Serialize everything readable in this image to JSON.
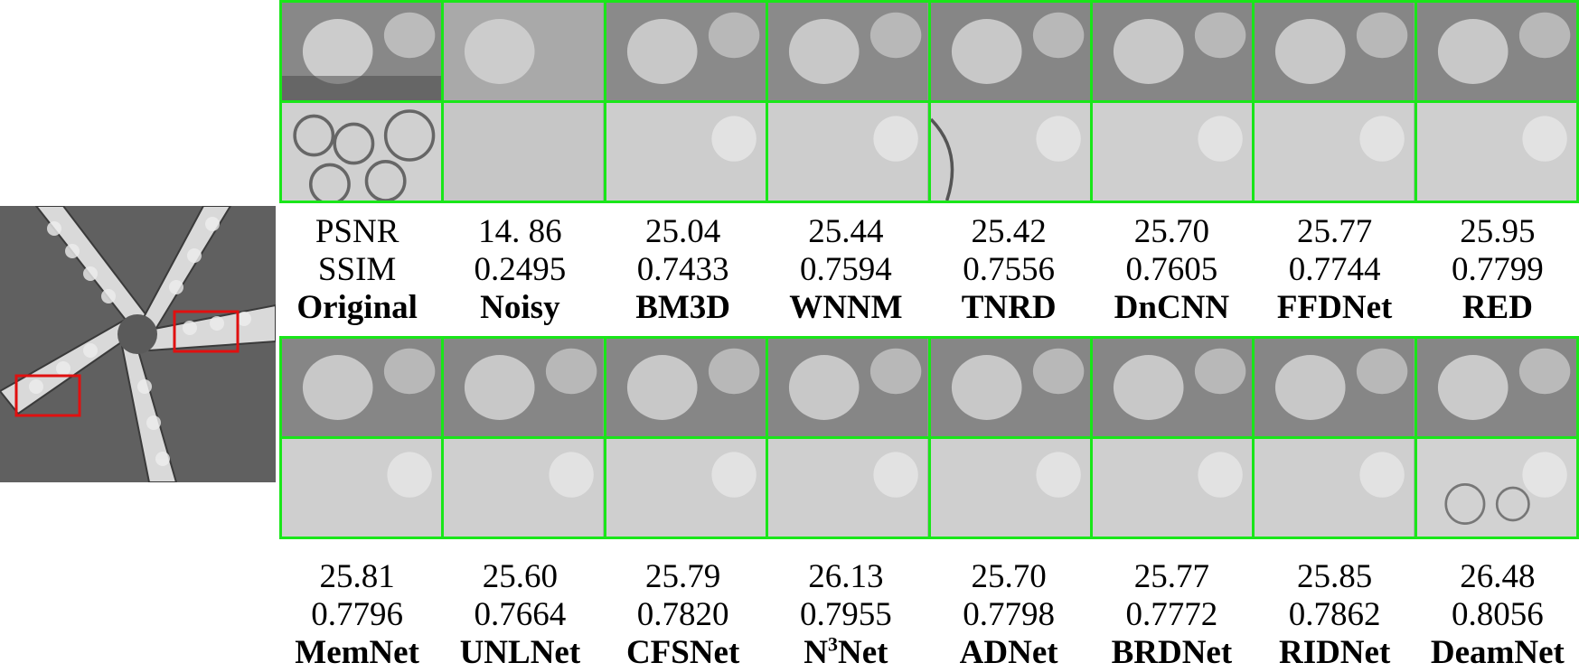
{
  "overview": {
    "icon": "starfish-image"
  },
  "metric_labels": {
    "psnr": "PSNR",
    "ssim": "SSIM"
  },
  "top_row": [
    {
      "name": "Original",
      "psnr": "",
      "ssim": ""
    },
    {
      "name": "Noisy",
      "psnr": "14. 86",
      "ssim": "0.2495"
    },
    {
      "name": "BM3D",
      "psnr": "25.04",
      "ssim": "0.7433"
    },
    {
      "name": "WNNM",
      "psnr": "25.44",
      "ssim": "0.7594"
    },
    {
      "name": "TNRD",
      "psnr": "25.42",
      "ssim": "0.7556"
    },
    {
      "name": "DnCNN",
      "psnr": "25.70",
      "ssim": "0.7605"
    },
    {
      "name": "FFDNet",
      "psnr": "25.77",
      "ssim": "0.7744"
    },
    {
      "name": "RED",
      "psnr": "25.95",
      "ssim": "0.7799"
    }
  ],
  "bottom_row": [
    {
      "name": "MemNet",
      "psnr": "25.81",
      "ssim": "0.7796"
    },
    {
      "name": "UNLNet",
      "psnr": "25.60",
      "ssim": "0.7664"
    },
    {
      "name": "CFSNet",
      "psnr": "25.79",
      "ssim": "0.7820"
    },
    {
      "name": "N",
      "sup": "3",
      "name_suffix": "Net",
      "psnr": "26.13",
      "ssim": "0.7955"
    },
    {
      "name": "ADNet",
      "psnr": "25.70",
      "ssim": "0.7798"
    },
    {
      "name": "BRDNet",
      "psnr": "25.77",
      "ssim": "0.7772"
    },
    {
      "name": "RIDNet",
      "psnr": "25.85",
      "ssim": "0.7862"
    },
    {
      "name": "DeamNet",
      "psnr": "26.48",
      "ssim": "0.8056"
    }
  ],
  "colors": {
    "highlight_border": "#19e619",
    "roi_box": "#e01010"
  }
}
